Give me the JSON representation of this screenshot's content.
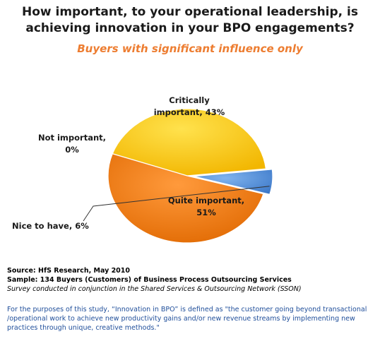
{
  "chart_data": {
    "type": "pie",
    "title_lines": [
      "How important, to your operational leadership, is",
      "achieving innovation in your BPO engagements?"
    ],
    "subtitle": "Buyers with significant influence only",
    "slices": [
      {
        "label": "Critically important",
        "value": 43,
        "value_label": "43%",
        "label_lines": [
          "Critically",
          "important, 43%"
        ],
        "color": "#ffcc00"
      },
      {
        "label": "Quite important",
        "value": 51,
        "value_label": "51%",
        "label_lines": [
          "Quite important,",
          "51%"
        ],
        "color": "#f07f1a"
      },
      {
        "label": "Nice to have",
        "value": 6,
        "value_label": "6%",
        "label_lines": [
          "Nice to have, 6%"
        ],
        "color": "#4f8fd9"
      },
      {
        "label": "Not important",
        "value": 0,
        "value_label": "0%",
        "label_lines": [
          "Not important,",
          "0%"
        ],
        "color": "#c0c0c0"
      }
    ],
    "units": "%"
  },
  "source": {
    "line1": "Source:  HfS Research, May 2010",
    "line2": "Sample:  134 Buyers (Customers) of Business Process Outsourcing  Services",
    "line3": "Survey conducted in conjunction in the Shared Services & Outsourcing Network (SSON)"
  },
  "footnote": {
    "line1": "For the purposes of this study, “Innovation in BPO” is defined as \"the customer going beyond transactional",
    "line2": "/operational work to achieve new productivity gains and/or new revenue streams by implementing new",
    "line3": "practices through unique, creative methods.\""
  }
}
